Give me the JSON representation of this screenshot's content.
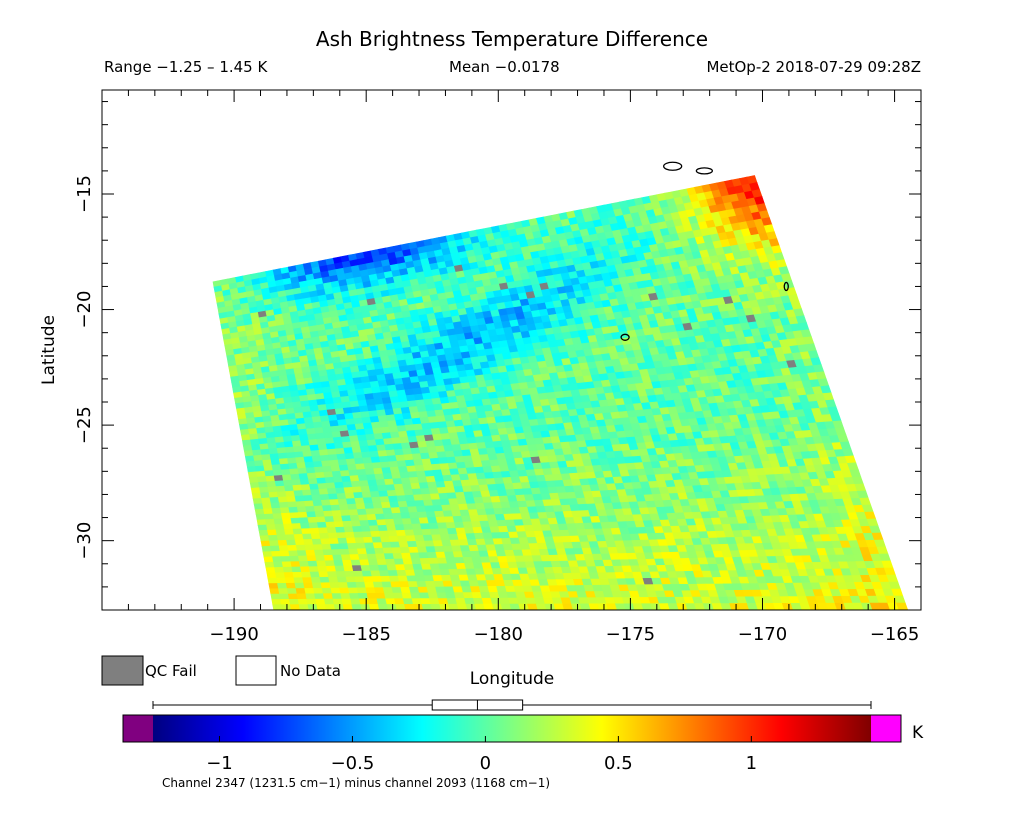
{
  "header": {
    "title": "Ash Brightness Temperature Difference",
    "range": "Range −1.25 – 1.45 K",
    "mean": "Mean −0.0178",
    "satellite": "MetOp-2 2018-07-29 09:28Z"
  },
  "legend": {
    "qc_fail": "QC Fail",
    "no_data": "No Data",
    "qc_fail_color": "#7f7f7f",
    "no_data_color": "#ffffff"
  },
  "colorbar": {
    "unit": "K",
    "ticks": [
      -1,
      -0.5,
      0,
      0.5,
      1
    ],
    "tick_labels": [
      "−1",
      "−0.5",
      "0",
      "0.5",
      "1"
    ],
    "caption": "Channel 2347 (1231.5 cm−1) minus channel 2093 (1168 cm−1)",
    "colors": [
      "#000080",
      "#0000ff",
      "#0080ff",
      "#00ffff",
      "#80ff80",
      "#ffff00",
      "#ff8000",
      "#ff0000",
      "#800000"
    ],
    "underflow_color": "#800080",
    "overflow_color": "#ff00ff",
    "whisker": {
      "min": -1.25,
      "q1": -0.2,
      "median": -0.03,
      "q3": 0.14,
      "max": 1.45
    }
  },
  "chart_data": {
    "type": "heatmap",
    "title": "Ash Brightness Temperature Difference",
    "xlabel": "Longitude",
    "ylabel": "Latitude",
    "xlim": [
      -195,
      -164
    ],
    "ylim": [
      -33,
      -10.5
    ],
    "xticks": [
      -190,
      -185,
      -180,
      -175,
      -170,
      -165
    ],
    "xtick_labels": [
      "−190",
      "−185",
      "−180",
      "−175",
      "−170",
      "−165"
    ],
    "yticks": [
      -15,
      -20,
      -25,
      -30
    ],
    "ytick_labels": [
      "−15",
      "−20",
      "−25",
      "−30"
    ],
    "value_range": [
      -1.25,
      1.45
    ],
    "mean": -0.0178,
    "units": "K",
    "swath_corners": {
      "top_left": [
        -190.8,
        -18.8
      ],
      "top_right": [
        -170.3,
        -14.2
      ],
      "bottom_left": [
        -188.5,
        -33
      ],
      "bottom_right": [
        -164.5,
        -33
      ]
    },
    "notable_regions": [
      {
        "region": "northeast corner near -171 lon, -15 lat",
        "value_approx": 1.0
      },
      {
        "region": "northwest edge near -186 lon, -19.5 lat",
        "value_approx": -0.8
      },
      {
        "region": "southern edge",
        "value_approx": 0.3
      }
    ],
    "coastlines": [
      {
        "name": "island-1",
        "lon": -173.4,
        "lat": -13.8
      },
      {
        "name": "island-2",
        "lon": -172.2,
        "lat": -14.0
      },
      {
        "name": "island-3",
        "lon": -175.2,
        "lat": -21.2
      },
      {
        "name": "island-4",
        "lon": -169.1,
        "lat": -19.0
      }
    ]
  }
}
